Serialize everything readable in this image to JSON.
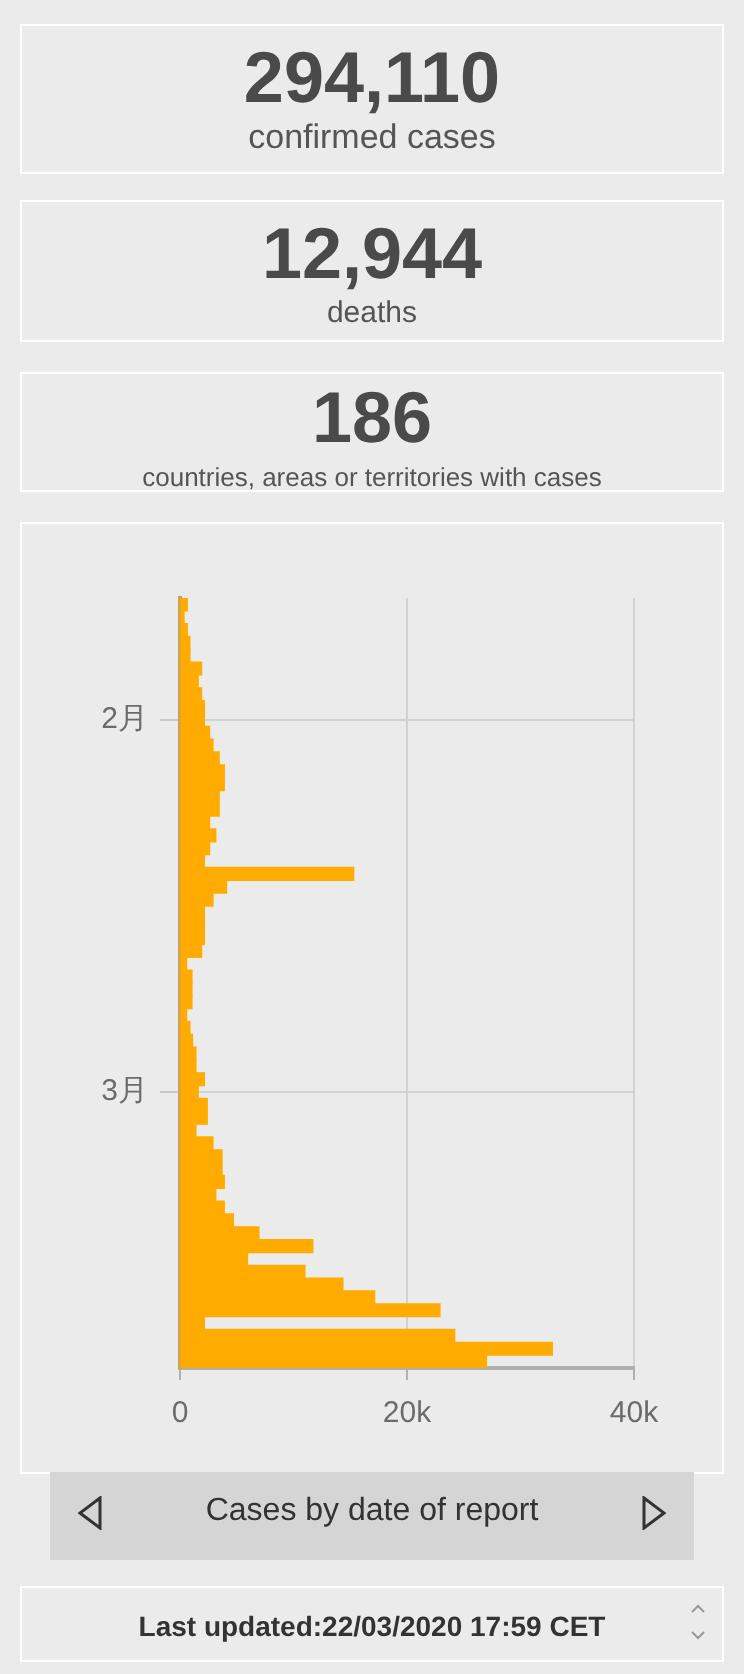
{
  "chart_data": [
    {
      "type": "other",
      "annotations": [
        "294,110",
        "confirmed cases",
        "12,944",
        "deaths",
        "186",
        "countries, areas or territories with cases"
      ]
    },
    {
      "type": "bar",
      "orientation": "horizontal",
      "title": "Cases by date of report",
      "color": "#ffab00",
      "categories": [
        null,
        null,
        null,
        null,
        null,
        null,
        null,
        null,
        null,
        "2月",
        null,
        null,
        null,
        null,
        null,
        null,
        null,
        null,
        null,
        null,
        null,
        null,
        null,
        null,
        null,
        null,
        null,
        null,
        null,
        null,
        null,
        null,
        null,
        null,
        null,
        null,
        null,
        null,
        "3月",
        null,
        null,
        null,
        null,
        null,
        null,
        null,
        null,
        null,
        null,
        null,
        null,
        null,
        null,
        null,
        null,
        null,
        null,
        null,
        null,
        null
      ],
      "values": [
        640,
        350,
        640,
        870,
        870,
        1900,
        1600,
        1900,
        2150,
        2150,
        2600,
        2900,
        3450,
        3900,
        3900,
        3450,
        3450,
        2600,
        3150,
        2600,
        2150,
        15300,
        4100,
        2900,
        2150,
        2150,
        2150,
        1900,
        580,
        1050,
        1050,
        1050,
        580,
        870,
        1100,
        1400,
        1400,
        2150,
        1600,
        2400,
        2400,
        1400,
        2900,
        3700,
        3700,
        3900,
        3150,
        3900,
        4700,
        6950,
        11700,
        5950,
        11000,
        14350,
        17150,
        22900,
        2150,
        24200,
        32800,
        27000
      ],
      "xlim": [
        0,
        40000
      ],
      "xticks": [
        {
          "value": 0,
          "label": "0"
        },
        {
          "value": 20000,
          "label": "20k"
        },
        {
          "value": 40000,
          "label": "40k"
        }
      ],
      "grid": true,
      "legend": false,
      "annotations": [
        "Last updated:22/03/2020 17:59 CET"
      ]
    }
  ]
}
